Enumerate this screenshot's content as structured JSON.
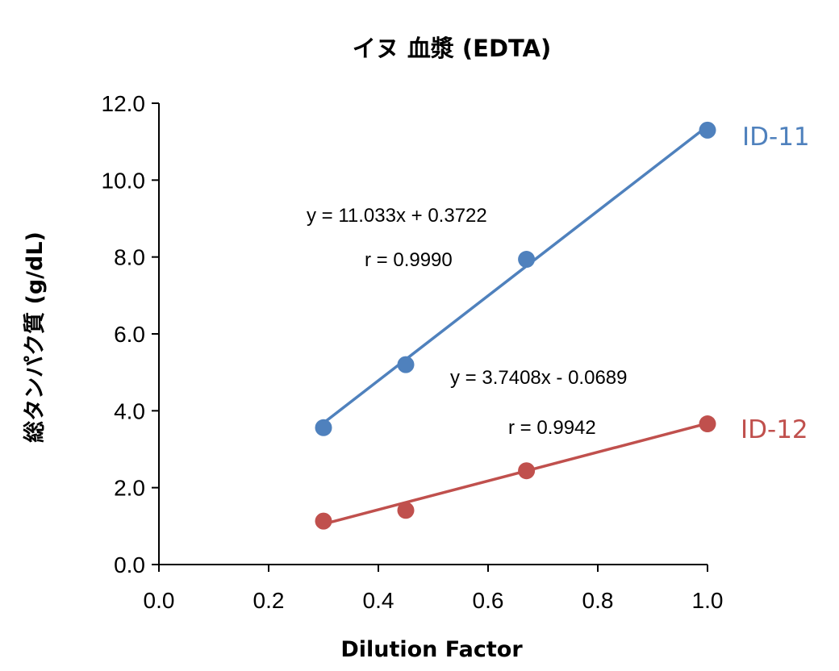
{
  "chart_data": {
    "type": "scatter",
    "title": "イヌ 血漿 (EDTA)",
    "xlabel": "Dilution Factor",
    "ylabel": "総タンパク質 (g/dL)",
    "xlim": [
      0,
      1
    ],
    "ylim": [
      0,
      12
    ],
    "xticks": [
      "0.0",
      "0.2",
      "0.4",
      "0.6",
      "0.8",
      "1.0"
    ],
    "yticks": [
      "0.0",
      "2.0",
      "4.0",
      "6.0",
      "8.0",
      "10.0",
      "12.0"
    ],
    "grid": false,
    "series": [
      {
        "name": "ID-11",
        "color": "#4F81BD",
        "x": [
          0.3,
          0.45,
          0.67,
          1.0
        ],
        "y": [
          3.56,
          5.2,
          7.94,
          11.3
        ],
        "trendline": {
          "slope": 11.033,
          "intercept": 0.3722
        },
        "equation": "y = 11.033x + 0.3722",
        "r_text": "r = 0.9990"
      },
      {
        "name": "ID-12",
        "color": "#C0504D",
        "x": [
          0.3,
          0.45,
          0.67,
          1.0
        ],
        "y": [
          1.13,
          1.41,
          2.44,
          3.66
        ],
        "trendline": {
          "slope": 3.7408,
          "intercept": -0.0689
        },
        "equation": "y = 3.7408x - 0.0689",
        "r_text": "r = 0.9942"
      }
    ]
  }
}
